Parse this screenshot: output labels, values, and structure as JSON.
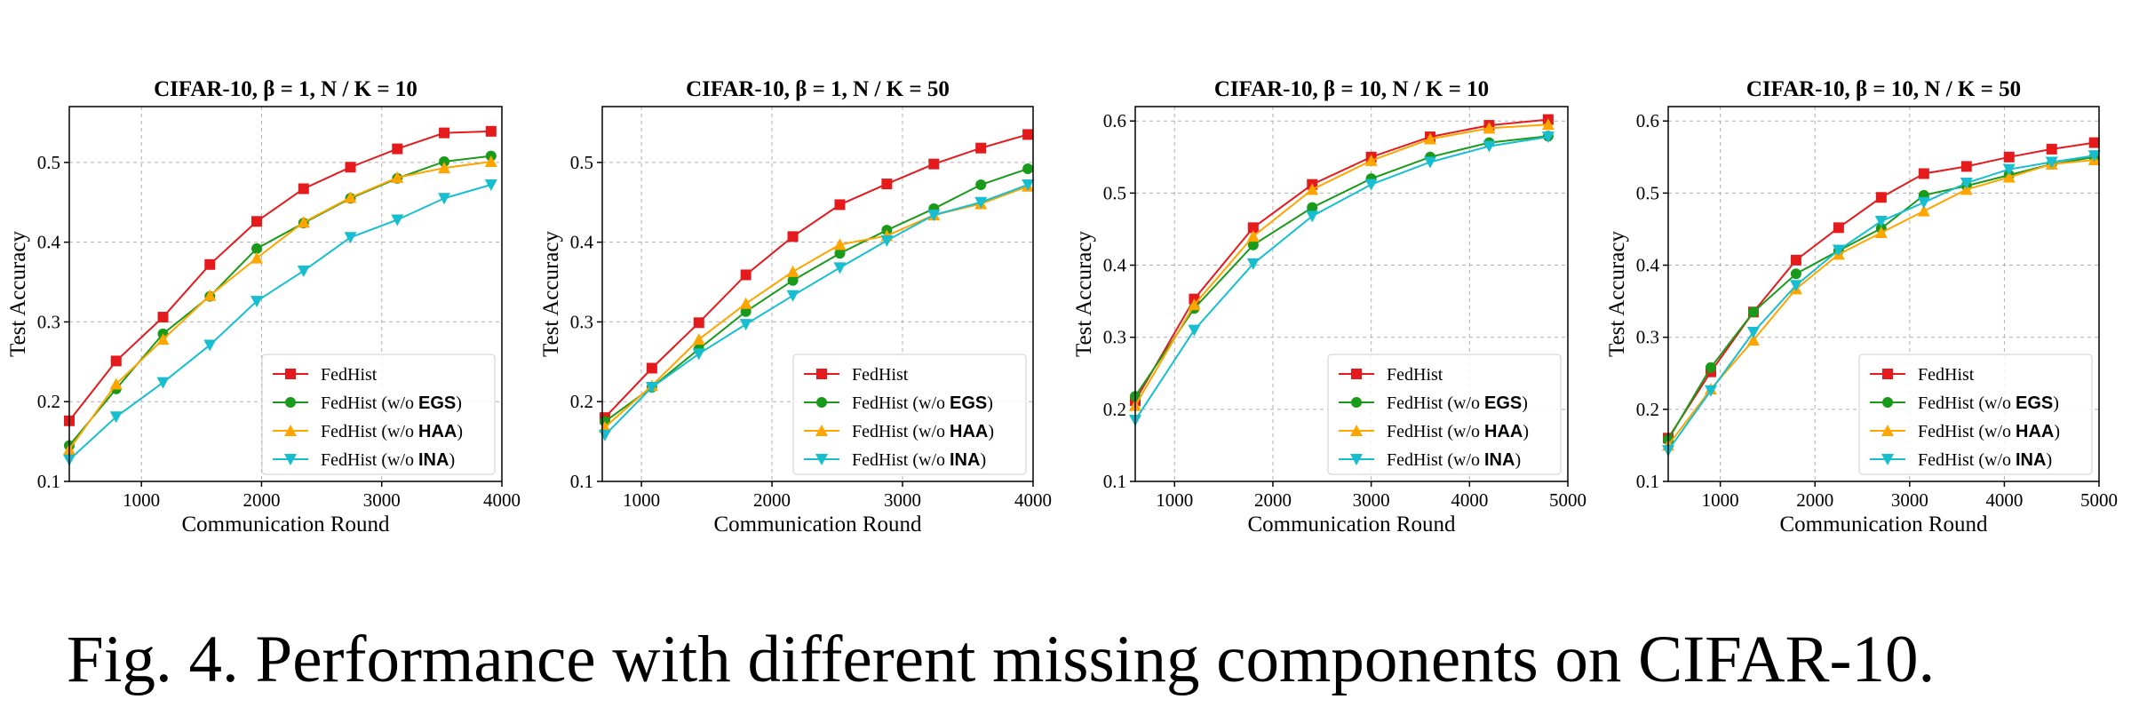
{
  "caption": "Fig. 4.  Performance with different missing components on CIFAR-10.",
  "colors": {
    "FedHist": "#e41a1c",
    "EGS": "#1a9a1a",
    "HAA": "#ffa500",
    "INA": "#17becf"
  },
  "chart_data": [
    {
      "type": "line",
      "title": "CIFAR-10,  β = 1,  N / K = 10",
      "xlabel": "Communication Round",
      "ylabel": "Test Accuracy",
      "xlim": [
        400,
        4000
      ],
      "ylim": [
        0.1,
        0.57
      ],
      "xticks": [
        1000,
        2000,
        3000,
        4000
      ],
      "yticks": [
        0.1,
        0.2,
        0.3,
        0.4,
        0.5
      ],
      "grid": true,
      "legend_position": "lower-right",
      "x": [
        400,
        790,
        1180,
        1570,
        1960,
        2350,
        2740,
        3130,
        3520,
        3910
      ],
      "series": [
        {
          "name": "FedHist",
          "prefix": "FedHist",
          "suffix": "",
          "marker": "square",
          "values": [
            0.176,
            0.251,
            0.306,
            0.372,
            0.426,
            0.467,
            0.494,
            0.517,
            0.537,
            0.539
          ]
        },
        {
          "name": "FedHist (w/o EGS)",
          "prefix": "FedHist (w/o ",
          "bold": "EGS",
          "suffix": ")",
          "marker": "circle",
          "values": [
            0.145,
            0.216,
            0.285,
            0.332,
            0.392,
            0.424,
            0.455,
            0.48,
            0.501,
            0.508
          ]
        },
        {
          "name": "FedHist (w/o HAA)",
          "prefix": "FedHist (w/o ",
          "bold": "HAA",
          "suffix": ")",
          "marker": "triangle-up",
          "values": [
            0.14,
            0.222,
            0.278,
            0.333,
            0.38,
            0.425,
            0.456,
            0.481,
            0.493,
            0.501
          ]
        },
        {
          "name": "FedHist (w/o INA)",
          "prefix": "FedHist (w/o ",
          "bold": "INA",
          "suffix": ")",
          "marker": "triangle-down",
          "values": [
            0.127,
            0.181,
            0.224,
            0.271,
            0.326,
            0.364,
            0.406,
            0.428,
            0.455,
            0.472
          ]
        }
      ]
    },
    {
      "type": "line",
      "title": "CIFAR-10,  β = 1,  N / K = 50",
      "xlabel": "Communication Round",
      "ylabel": "Test Accuracy",
      "xlim": [
        700,
        4000
      ],
      "ylim": [
        0.1,
        0.57
      ],
      "xticks": [
        1000,
        2000,
        3000,
        4000
      ],
      "yticks": [
        0.1,
        0.2,
        0.3,
        0.4,
        0.5
      ],
      "grid": true,
      "legend_position": "lower-right",
      "x": [
        720,
        1080,
        1440,
        1800,
        2160,
        2520,
        2880,
        3240,
        3600,
        3960
      ],
      "series": [
        {
          "name": "FedHist",
          "prefix": "FedHist",
          "suffix": "",
          "marker": "square",
          "values": [
            0.18,
            0.242,
            0.299,
            0.359,
            0.407,
            0.447,
            0.473,
            0.498,
            0.518,
            0.535
          ]
        },
        {
          "name": "FedHist (w/o EGS)",
          "prefix": "FedHist (w/o ",
          "bold": "EGS",
          "suffix": ")",
          "marker": "circle",
          "values": [
            0.175,
            0.218,
            0.266,
            0.313,
            0.352,
            0.386,
            0.415,
            0.442,
            0.472,
            0.492
          ]
        },
        {
          "name": "FedHist (w/o HAA)",
          "prefix": "FedHist (w/o ",
          "bold": "HAA",
          "suffix": ")",
          "marker": "triangle-up",
          "values": [
            0.168,
            0.22,
            0.278,
            0.323,
            0.363,
            0.397,
            0.408,
            0.434,
            0.448,
            0.47
          ]
        },
        {
          "name": "FedHist (w/o INA)",
          "prefix": "FedHist (w/o ",
          "bold": "INA",
          "suffix": ")",
          "marker": "triangle-down",
          "values": [
            0.158,
            0.218,
            0.26,
            0.297,
            0.333,
            0.368,
            0.402,
            0.434,
            0.45,
            0.472
          ]
        }
      ]
    },
    {
      "type": "line",
      "title": "CIFAR-10,  β = 10,  N / K = 10",
      "xlabel": "Communication Round",
      "ylabel": "Test Accuracy",
      "xlim": [
        600,
        5000
      ],
      "ylim": [
        0.1,
        0.62
      ],
      "xticks": [
        1000,
        2000,
        3000,
        4000,
        5000
      ],
      "yticks": [
        0.1,
        0.2,
        0.3,
        0.4,
        0.5,
        0.6
      ],
      "grid": true,
      "legend_position": "lower-right",
      "x": [
        600,
        1200,
        1800,
        2400,
        3000,
        3600,
        4200,
        4800
      ],
      "series": [
        {
          "name": "FedHist",
          "prefix": "FedHist",
          "suffix": "",
          "marker": "square",
          "values": [
            0.212,
            0.353,
            0.452,
            0.512,
            0.55,
            0.578,
            0.594,
            0.602
          ]
        },
        {
          "name": "FedHist (w/o EGS)",
          "prefix": "FedHist (w/o ",
          "bold": "EGS",
          "suffix": ")",
          "marker": "circle",
          "values": [
            0.218,
            0.34,
            0.428,
            0.48,
            0.52,
            0.55,
            0.57,
            0.579
          ]
        },
        {
          "name": "FedHist (w/o HAA)",
          "prefix": "FedHist (w/o ",
          "bold": "HAA",
          "suffix": ")",
          "marker": "triangle-up",
          "values": [
            0.205,
            0.345,
            0.44,
            0.505,
            0.545,
            0.575,
            0.59,
            0.595
          ]
        },
        {
          "name": "FedHist (w/o INA)",
          "prefix": "FedHist (w/o ",
          "bold": "INA",
          "suffix": ")",
          "marker": "triangle-down",
          "values": [
            0.185,
            0.31,
            0.402,
            0.468,
            0.512,
            0.543,
            0.565,
            0.578
          ]
        }
      ]
    },
    {
      "type": "line",
      "title": "CIFAR-10,  β = 10,  N / K = 50",
      "xlabel": "Communication Round",
      "ylabel": "Test Accuracy",
      "xlim": [
        450,
        5000
      ],
      "ylim": [
        0.1,
        0.62
      ],
      "xticks": [
        1000,
        2000,
        3000,
        4000,
        5000
      ],
      "yticks": [
        0.1,
        0.2,
        0.3,
        0.4,
        0.5,
        0.6
      ],
      "grid": true,
      "legend_position": "lower-right",
      "x": [
        450,
        900,
        1350,
        1800,
        2250,
        2700,
        3150,
        3600,
        4050,
        4500,
        4950
      ],
      "series": [
        {
          "name": "FedHist",
          "prefix": "FedHist",
          "suffix": "",
          "marker": "square",
          "values": [
            0.16,
            0.252,
            0.335,
            0.407,
            0.452,
            0.494,
            0.527,
            0.537,
            0.55,
            0.561,
            0.57
          ]
        },
        {
          "name": "FedHist (w/o EGS)",
          "prefix": "FedHist (w/o ",
          "bold": "EGS",
          "suffix": ")",
          "marker": "circle",
          "values": [
            0.158,
            0.258,
            0.335,
            0.388,
            0.42,
            0.451,
            0.497,
            0.51,
            0.525,
            0.54,
            0.55
          ]
        },
        {
          "name": "FedHist (w/o HAA)",
          "prefix": "FedHist (w/o ",
          "bold": "HAA",
          "suffix": ")",
          "marker": "triangle-up",
          "values": [
            0.15,
            0.228,
            0.296,
            0.367,
            0.415,
            0.445,
            0.475,
            0.505,
            0.522,
            0.54,
            0.546
          ]
        },
        {
          "name": "FedHist (w/o INA)",
          "prefix": "FedHist (w/o ",
          "bold": "INA",
          "suffix": ")",
          "marker": "triangle-down",
          "values": [
            0.143,
            0.226,
            0.307,
            0.372,
            0.421,
            0.461,
            0.487,
            0.514,
            0.533,
            0.543,
            0.552
          ]
        }
      ]
    }
  ]
}
